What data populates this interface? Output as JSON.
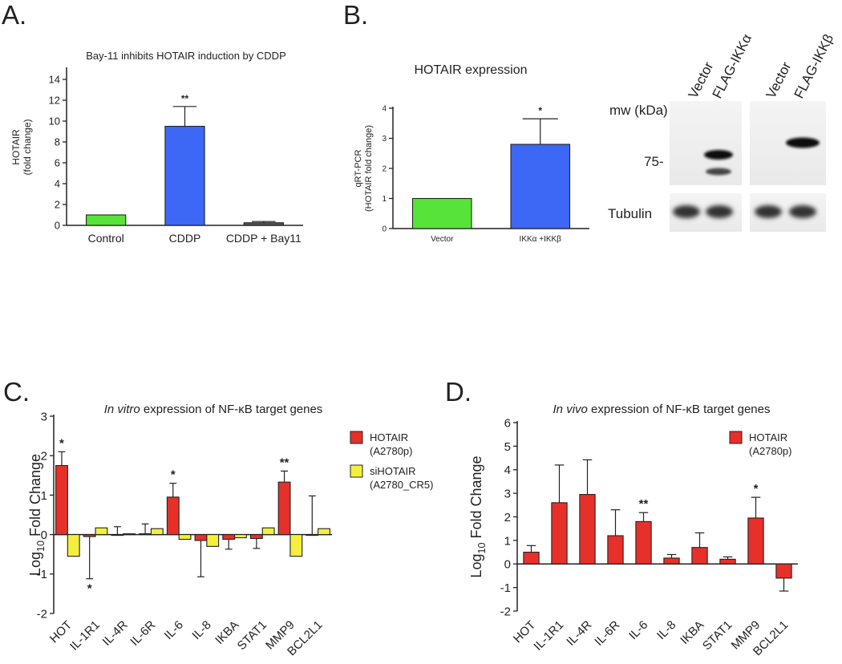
{
  "figure": {
    "panel_labels": [
      "A.",
      "B.",
      "C.",
      "D."
    ],
    "colors": {
      "green": "#58e33a",
      "blue": "#3d67f5",
      "red": "#e7302a",
      "yellow": "#f4ef3c",
      "axis": "#222222"
    }
  },
  "chart_data": [
    {
      "id": "A",
      "type": "bar",
      "title": "Bay-11 inhibits HOTAIR induction by CDDP",
      "ylabel": [
        "HOTAIR",
        "(fold change)"
      ],
      "xlabel": "",
      "ylim": [
        0,
        15
      ],
      "yticks": [
        0,
        2,
        4,
        6,
        8,
        10,
        12,
        14
      ],
      "categories": [
        "Control",
        "CDDP",
        "CDDP + Bay11"
      ],
      "values": [
        1.0,
        9.5,
        0.25
      ],
      "errors": [
        0,
        1.9,
        0.12
      ],
      "colors": [
        "#58e33a",
        "#3d67f5",
        "#555555"
      ],
      "annotations": [
        {
          "category": "CDDP",
          "text": "**"
        }
      ]
    },
    {
      "id": "B",
      "type": "bar",
      "title": "HOTAIR expression",
      "ylabel": [
        "qRT-PCR",
        "(HOTAIR fold change)"
      ],
      "xlabel": "",
      "ylim": [
        0,
        4
      ],
      "yticks": [
        0,
        1,
        2,
        3,
        4
      ],
      "categories": [
        "Vector",
        "IKKα +IKKβ"
      ],
      "values": [
        1.0,
        2.8
      ],
      "errors": [
        0,
        0.85
      ],
      "colors": [
        "#58e33a",
        "#3d67f5"
      ],
      "annotations": [
        {
          "category": "IKKα +IKKβ",
          "text": "*"
        }
      ]
    },
    {
      "id": "C",
      "type": "bar",
      "title_italic": "In vitro",
      "title_rest": " expression of NF-κB target genes",
      "ylabel": "Log10 Fold Change",
      "xlabel": "",
      "ylim": [
        -2,
        3
      ],
      "yticks": [
        -2,
        -1,
        0,
        1,
        2,
        3
      ],
      "categories": [
        "HOT",
        "IL-1R1",
        "IL-4R",
        "IL-6R",
        "IL-6",
        "IL-8",
        "IKBA",
        "STAT1",
        "MMP9",
        "BCL2L1"
      ],
      "legend": [
        {
          "name": "HOTAIR",
          "sub": "(A2780p)",
          "color": "#e7302a"
        },
        {
          "name": "siHOTAIR",
          "sub": "(A2780_CR5)",
          "color": "#f4ef3c"
        }
      ],
      "series": [
        {
          "name": "HOTAIR (A2780p)",
          "values": [
            1.75,
            -0.05,
            0.0,
            0.02,
            0.95,
            -0.15,
            -0.12,
            -0.1,
            1.33,
            0.0
          ],
          "errors": [
            0.35,
            1.07,
            0.2,
            0.25,
            0.35,
            0.92,
            0.25,
            0.25,
            0.28,
            0.98
          ]
        },
        {
          "name": "siHOTAIR (A2780_CR5)",
          "values": [
            -0.55,
            0.17,
            0.02,
            0.15,
            -0.12,
            -0.3,
            -0.08,
            0.17,
            -0.55,
            0.15
          ]
        }
      ],
      "annotations": [
        {
          "category": "HOT",
          "series": 0,
          "text": "*",
          "position": "above"
        },
        {
          "category": "IL-1R1",
          "series": 0,
          "text": "*",
          "position": "below"
        },
        {
          "category": "IL-6",
          "series": 0,
          "text": "*",
          "position": "above"
        },
        {
          "category": "MMP9",
          "series": 0,
          "text": "**",
          "position": "above"
        }
      ]
    },
    {
      "id": "D",
      "type": "bar",
      "title_italic": "In vivo",
      "title_rest": " expression of NF-κB target genes",
      "ylabel": "Log10 Fold Change",
      "xlabel": "",
      "ylim": [
        -2,
        6
      ],
      "yticks": [
        -2,
        -1,
        0,
        1,
        2,
        3,
        4,
        5,
        6
      ],
      "categories": [
        "HOT",
        "IL-1R1",
        "IL-4R",
        "IL-6R",
        "IL-6",
        "IL-8",
        "IKBA",
        "STAT1",
        "MMP9",
        "BCL2L1"
      ],
      "legend": [
        {
          "name": "HOTAIR",
          "sub": "(A2780p)",
          "color": "#e7302a"
        }
      ],
      "values": [
        0.5,
        2.6,
        2.95,
        1.2,
        1.8,
        0.25,
        0.7,
        0.2,
        1.95,
        -0.6
      ],
      "errors": [
        0.28,
        1.6,
        1.47,
        1.1,
        0.38,
        0.15,
        0.62,
        0.1,
        0.88,
        0.55
      ],
      "annotations": [
        {
          "category": "IL-6",
          "text": "**"
        },
        {
          "category": "MMP9",
          "text": "*"
        }
      ]
    }
  ],
  "western_blot": {
    "lanes": [
      "Vector",
      "FLAG-IKKα",
      "Vector",
      "FLAG-IKKβ"
    ],
    "mw_label": "mw (kDa)",
    "marker_label": "75-",
    "loading_label": "Tubulin"
  }
}
